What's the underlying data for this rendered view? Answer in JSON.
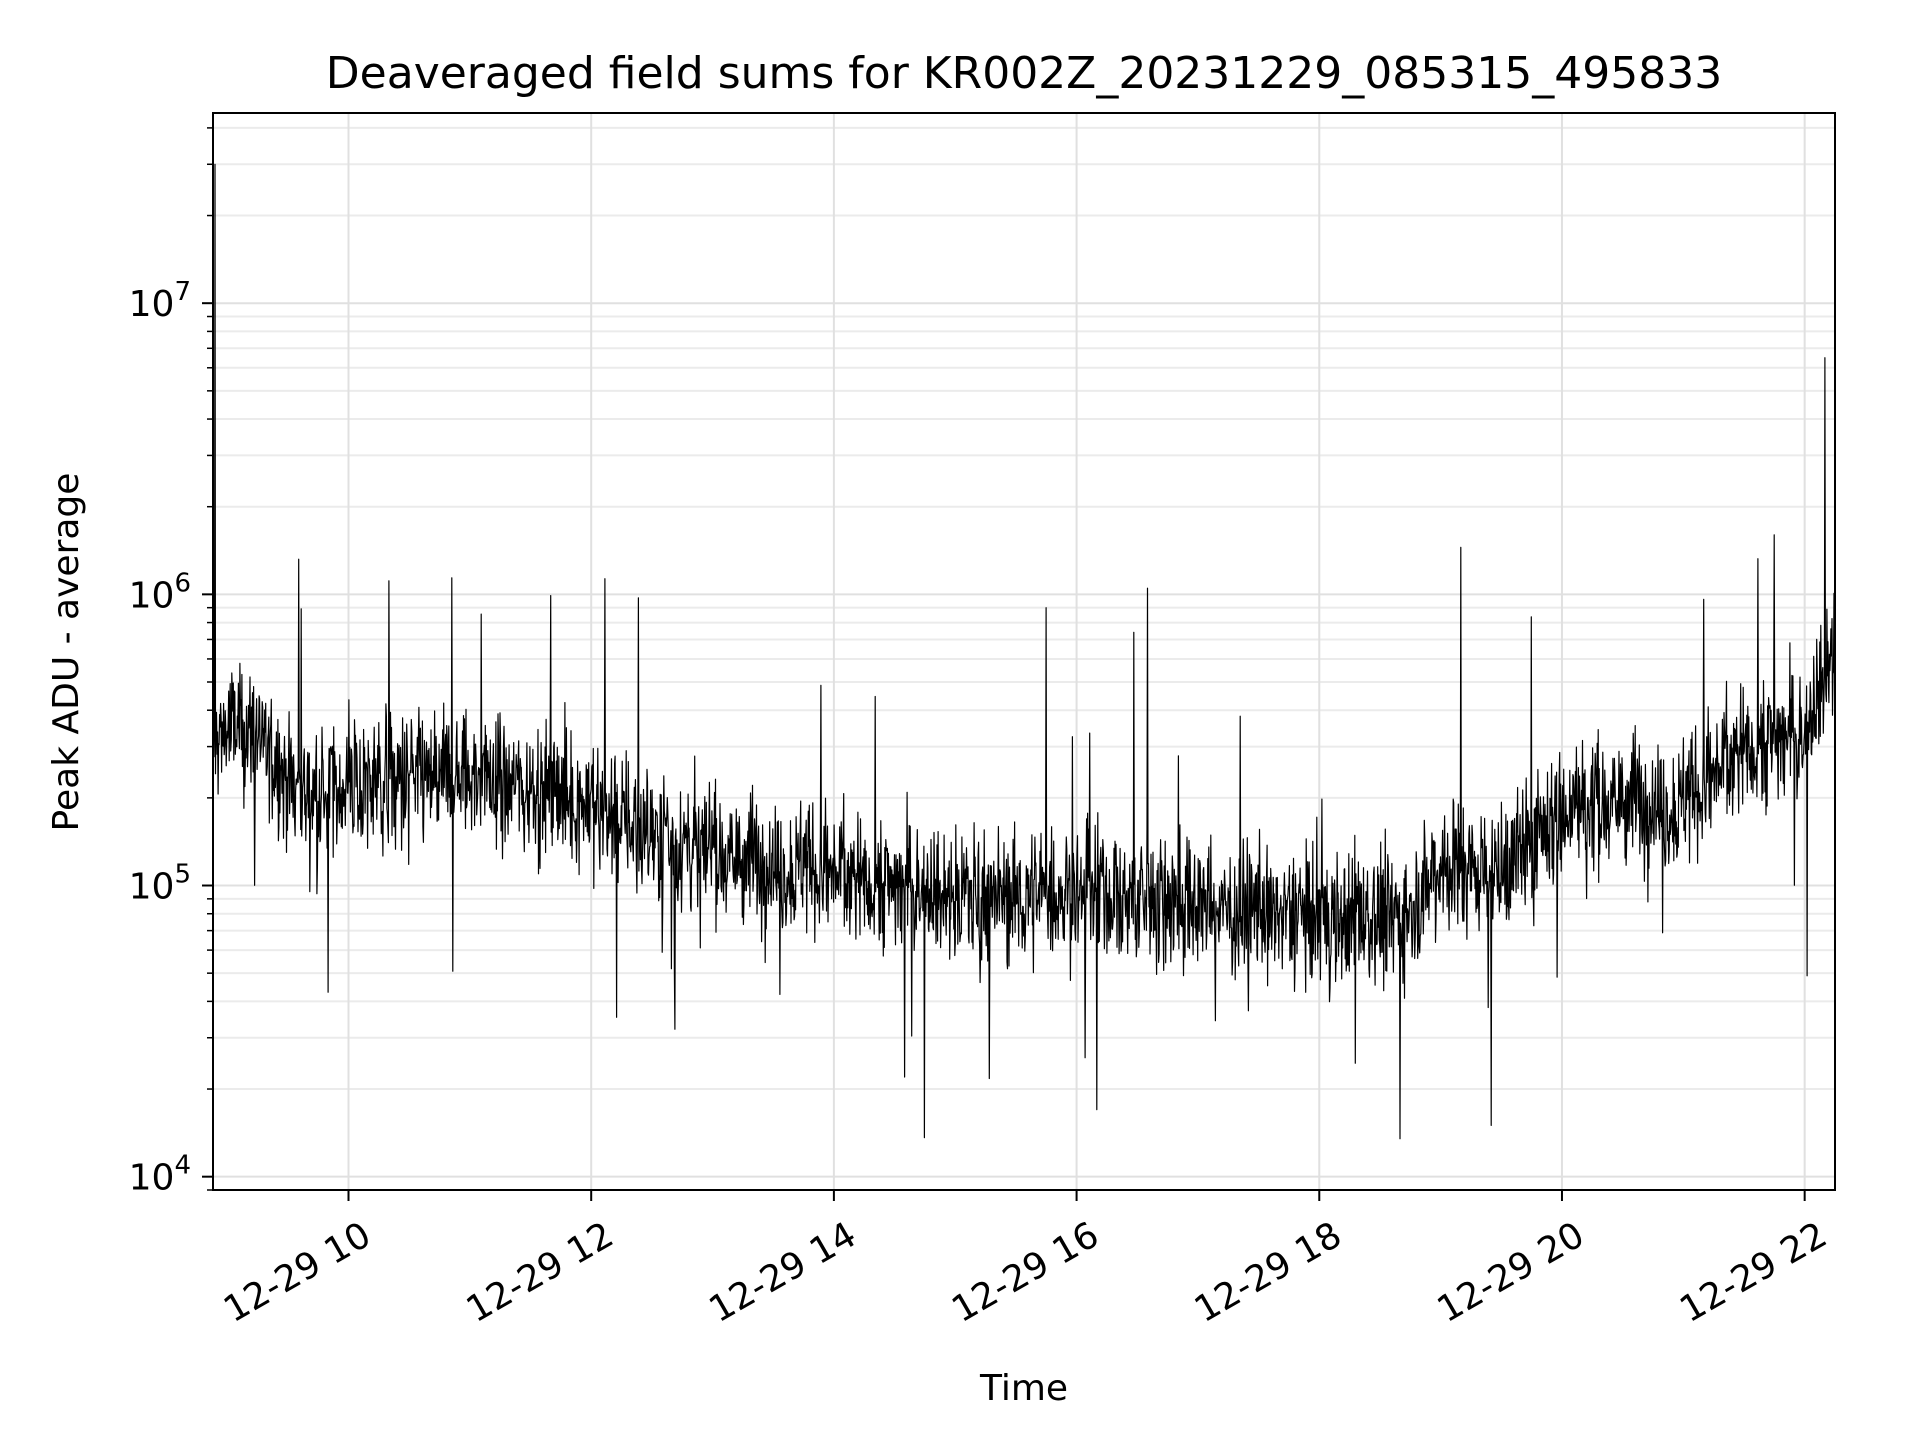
{
  "chart_data": {
    "type": "line",
    "title": "Deaveraged field sums for KR002Z_20231229_085315_495833",
    "xlabel": "Time",
    "ylabel": "Peak ADU - average",
    "xlim": [
      "2023-12-29 08:53",
      "2023-12-29 22:15"
    ],
    "ylim": [
      9000,
      45000000
    ],
    "yscale": "log",
    "grid": true,
    "grid_minor": true,
    "line_color": "#000000",
    "x_tick_labels": [
      "12-29 10",
      "12-29 12",
      "12-29 14",
      "12-29 16",
      "12-29 18",
      "12-29 20",
      "12-29 22"
    ],
    "x_ticks": [
      "2023-12-29 10:00",
      "2023-12-29 12:00",
      "2023-12-29 14:00",
      "2023-12-29 16:00",
      "2023-12-29 18:00",
      "2023-12-29 20:00",
      "2023-12-29 22:00"
    ],
    "y_ticks": [
      {
        "value": 10000,
        "base": "10",
        "exp": "4"
      },
      {
        "value": 100000,
        "base": "10",
        "exp": "5"
      },
      {
        "value": 1000000,
        "base": "10",
        "exp": "6"
      },
      {
        "value": 10000000,
        "base": "10",
        "exp": "7"
      }
    ],
    "series": [
      {
        "x": [
          "2023-12-29 08:53",
          "2023-12-29 09:00",
          "2023-12-29 09:15",
          "2023-12-29 09:30",
          "2023-12-29 09:45",
          "2023-12-29 10:00",
          "2023-12-29 10:30",
          "2023-12-29 11:00",
          "2023-12-29 11:30",
          "2023-12-29 12:00",
          "2023-12-29 12:30",
          "2023-12-29 13:00",
          "2023-12-29 13:30",
          "2023-12-29 14:00",
          "2023-12-29 14:30",
          "2023-12-29 15:00",
          "2023-12-29 15:30",
          "2023-12-29 16:00",
          "2023-12-29 16:30",
          "2023-12-29 17:00",
          "2023-12-29 17:30",
          "2023-12-29 18:00",
          "2023-12-29 18:30",
          "2023-12-29 18:45",
          "2023-12-29 19:00",
          "2023-12-29 19:30",
          "2023-12-29 20:00",
          "2023-12-29 20:30",
          "2023-12-29 21:00",
          "2023-12-29 21:30",
          "2023-12-29 22:00",
          "2023-12-29 22:15"
        ],
        "y": [
          300000,
          350000,
          330000,
          230000,
          200000,
          220000,
          230000,
          240000,
          220000,
          190000,
          150000,
          130000,
          120000,
          110000,
          100000,
          95000,
          90000,
          95000,
          90000,
          85000,
          80000,
          78000,
          75000,
          85000,
          120000,
          110000,
          180000,
          200000,
          190000,
          300000,
          330000,
          700000
        ],
        "spikes": [
          {
            "x": "2023-12-29 08:54",
            "y": 30000000
          },
          {
            "x": "2023-12-29 15:45",
            "y": 900000
          },
          {
            "x": "2023-12-29 16:35",
            "y": 1050000
          },
          {
            "x": "2023-12-29 19:10",
            "y": 1450000
          },
          {
            "x": "2023-12-29 21:45",
            "y": 1600000
          },
          {
            "x": "2023-12-29 22:10",
            "y": 6500000
          }
        ],
        "dips": [
          {
            "x": "2023-12-29 09:50",
            "y": 43000
          },
          {
            "x": "2023-12-29 14:35",
            "y": 22000
          },
          {
            "x": "2023-12-29 16:10",
            "y": 17000
          },
          {
            "x": "2023-12-29 18:40",
            "y": 13500
          },
          {
            "x": "2023-12-29 19:25",
            "y": 15000
          }
        ]
      }
    ]
  }
}
